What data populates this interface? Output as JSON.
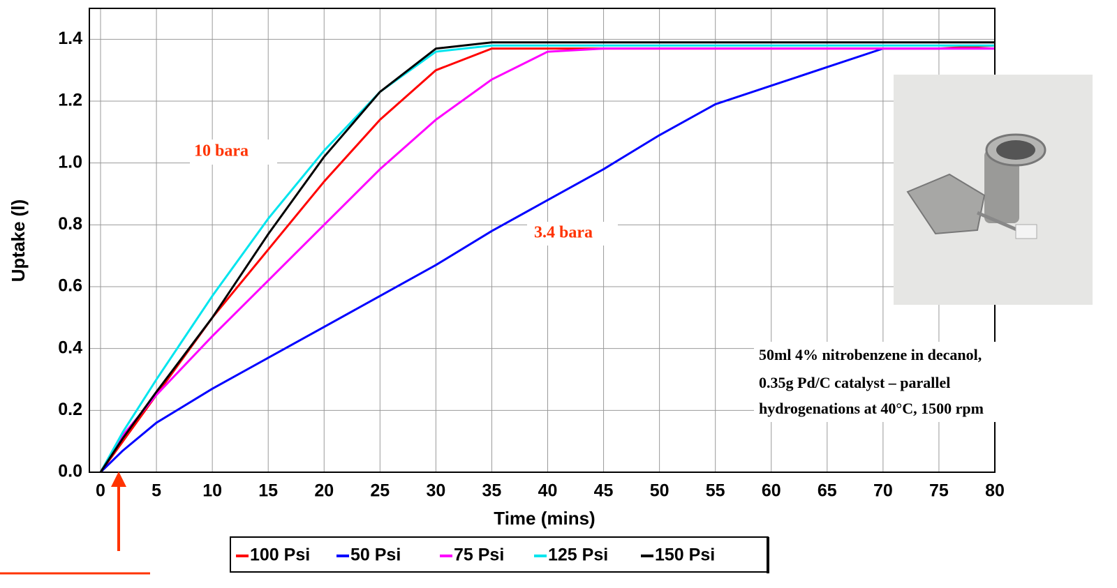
{
  "chart_data": {
    "type": "line",
    "x_label": "Time (mins)",
    "y_label": "Uptake (l)",
    "x": [
      0,
      2,
      5,
      10,
      15,
      20,
      25,
      30,
      35,
      40,
      45,
      50,
      55,
      60,
      65,
      70,
      75,
      80
    ],
    "series": [
      {
        "name": "100 Psi",
        "color": "#ff0000",
        "values": [
          0,
          0.1,
          0.25,
          0.5,
          0.72,
          0.94,
          1.14,
          1.3,
          1.37,
          1.37,
          1.37,
          1.37,
          1.37,
          1.37,
          1.37,
          1.37,
          1.37,
          1.38
        ]
      },
      {
        "name": "50 Psi",
        "color": "#0000ff",
        "values": [
          0,
          0.07,
          0.16,
          0.27,
          0.37,
          0.47,
          0.57,
          0.67,
          0.78,
          0.88,
          0.98,
          1.09,
          1.19,
          1.25,
          1.31,
          1.37,
          1.37,
          1.37
        ]
      },
      {
        "name": "75 Psi",
        "color": "#ff00ff",
        "values": [
          0,
          0.12,
          0.25,
          0.44,
          0.62,
          0.8,
          0.98,
          1.14,
          1.27,
          1.36,
          1.37,
          1.37,
          1.37,
          1.37,
          1.37,
          1.37,
          1.37,
          1.37
        ]
      },
      {
        "name": "125 Psi",
        "color": "#00e5ee",
        "values": [
          0,
          0.13,
          0.3,
          0.57,
          0.82,
          1.04,
          1.23,
          1.36,
          1.38,
          1.38,
          1.38,
          1.38,
          1.38,
          1.38,
          1.38,
          1.38,
          1.38,
          1.38
        ]
      },
      {
        "name": "150 Psi",
        "color": "#000000",
        "values": [
          0,
          0.11,
          0.26,
          0.5,
          0.77,
          1.02,
          1.23,
          1.37,
          1.39,
          1.39,
          1.39,
          1.39,
          1.39,
          1.39,
          1.39,
          1.39,
          1.39,
          1.39
        ]
      }
    ],
    "xlim": [
      -1,
      80
    ],
    "ylim": [
      0,
      1.5
    ],
    "xticks": [
      0,
      5,
      10,
      15,
      20,
      25,
      30,
      35,
      40,
      45,
      50,
      55,
      60,
      65,
      70,
      75,
      80
    ],
    "yticks": [
      {
        "value": 0,
        "label": "0.0"
      },
      0.2,
      0.4,
      0.6,
      0.8,
      {
        "value": 1,
        "label": "1.0"
      },
      1.2,
      1.4
    ],
    "grid": true,
    "annotations": [
      "10 bara",
      "3.4 bara"
    ],
    "note": [
      "50ml  4% nitrobenzene in decanol,",
      "0.35g  Pd/C catalyst – parallel",
      "hydrogenations  at 40°C, 1500 rpm"
    ]
  }
}
